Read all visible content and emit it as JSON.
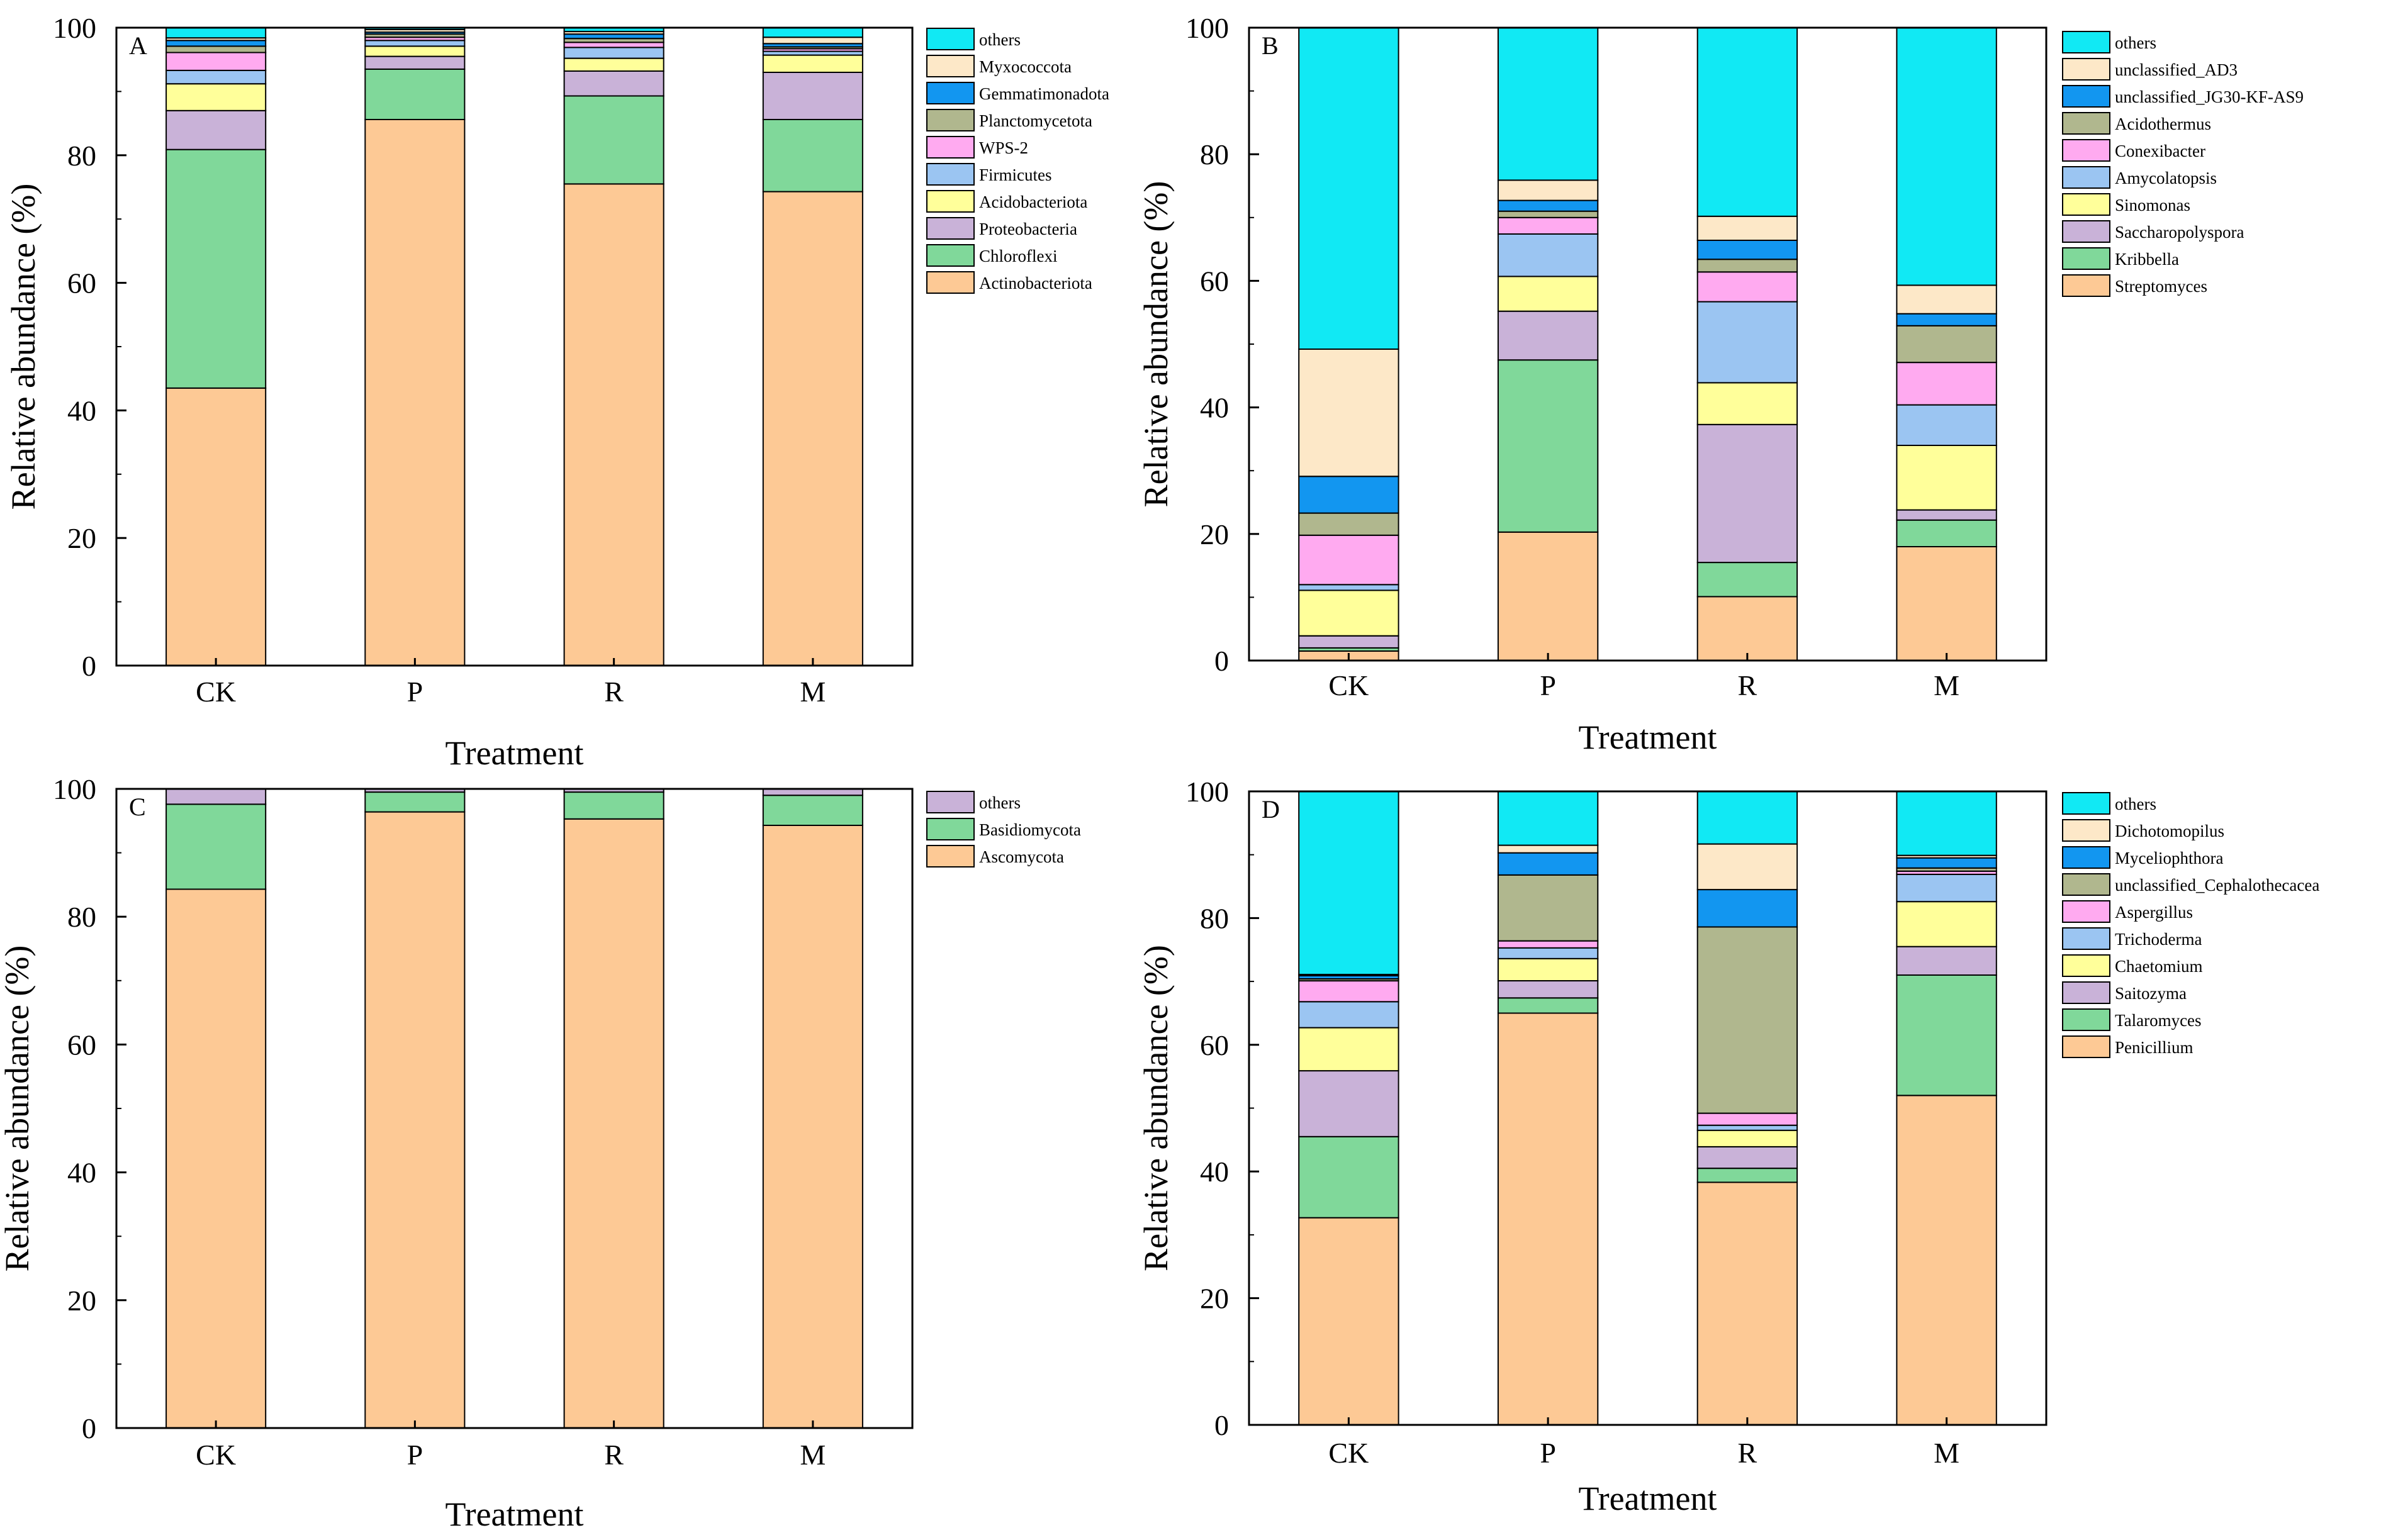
{
  "chart_data": [
    {
      "panel": "A",
      "type": "stacked-bar",
      "xlabel": "Treatment",
      "ylabel": "Relative abundance (%)",
      "ylim": [
        0,
        100
      ],
      "yticks": [
        0,
        20,
        40,
        60,
        80,
        100
      ],
      "categories": [
        "CK",
        "P",
        "R",
        "M"
      ],
      "legend_position": "right",
      "series": [
        {
          "name": "Actinobacteriota",
          "color": "#FDC995",
          "values": [
            43.5,
            85.6,
            75.5,
            74.3
          ]
        },
        {
          "name": "Chloroflexi",
          "color": "#80D89A",
          "values": [
            37.4,
            7.9,
            13.8,
            11.3
          ]
        },
        {
          "name": "Proteobacteria",
          "color": "#C9B2D8",
          "values": [
            6.1,
            2.0,
            3.9,
            7.4
          ]
        },
        {
          "name": "Acidobacteriota",
          "color": "#FFFF9A",
          "values": [
            4.2,
            1.6,
            2.0,
            2.7
          ]
        },
        {
          "name": "Firmicutes",
          "color": "#9BC5F2",
          "values": [
            2.1,
            0.9,
            1.7,
            0.6
          ]
        },
        {
          "name": "WPS-2",
          "color": "#FFAAF0",
          "values": [
            2.8,
            0.5,
            0.8,
            0.4
          ]
        },
        {
          "name": "Planctomycetota",
          "color": "#B0B78E",
          "values": [
            1.0,
            0.5,
            0.6,
            0.3
          ]
        },
        {
          "name": "Gemmatimonadota",
          "color": "#1296F0",
          "values": [
            0.9,
            0.3,
            0.7,
            0.5
          ]
        },
        {
          "name": "Myxococcota",
          "color": "#FDE8C8",
          "values": [
            0.4,
            0.4,
            0.4,
            1.0
          ]
        },
        {
          "name": "others",
          "color": "#11E9F4",
          "values": [
            1.6,
            0.3,
            0.6,
            1.5
          ]
        }
      ]
    },
    {
      "panel": "B",
      "type": "stacked-bar",
      "xlabel": "Treatment",
      "ylabel": "Relative abundance (%)",
      "ylim": [
        0,
        100
      ],
      "yticks": [
        0,
        20,
        40,
        60,
        80,
        100
      ],
      "categories": [
        "CK",
        "P",
        "R",
        "M"
      ],
      "legend_position": "right",
      "series": [
        {
          "name": "Streptomyces",
          "color": "#FDC995",
          "values": [
            1.5,
            20.3,
            10.1,
            18.0
          ]
        },
        {
          "name": "Kribbella",
          "color": "#80D89A",
          "values": [
            0.5,
            27.2,
            5.4,
            4.2
          ]
        },
        {
          "name": "Saccharopolyspora",
          "color": "#C9B2D8",
          "values": [
            1.9,
            7.7,
            21.8,
            1.6
          ]
        },
        {
          "name": "Sinomonas",
          "color": "#FFFF9A",
          "values": [
            7.2,
            5.5,
            6.6,
            10.2
          ]
        },
        {
          "name": "Amycolatopsis",
          "color": "#9BC5F2",
          "values": [
            0.9,
            6.7,
            12.8,
            6.4
          ]
        },
        {
          "name": "Conexibacter",
          "color": "#FFAAF0",
          "values": [
            7.8,
            2.6,
            4.7,
            6.7
          ]
        },
        {
          "name": "Acidothermus",
          "color": "#B0B78E",
          "values": [
            3.5,
            1.0,
            2.0,
            5.8
          ]
        },
        {
          "name": "unclassified_JG30-KF-AS9",
          "color": "#1296F0",
          "values": [
            5.8,
            1.7,
            3.0,
            1.9
          ]
        },
        {
          "name": "unclassified_AD3",
          "color": "#FDE8C8",
          "values": [
            20.1,
            3.2,
            3.8,
            4.5
          ]
        },
        {
          "name": "others",
          "color": "#11E9F4",
          "values": [
            50.8,
            24.1,
            29.8,
            40.7
          ]
        }
      ]
    },
    {
      "panel": "C",
      "type": "stacked-bar",
      "xlabel": "Treatment",
      "ylabel": "Relative abundance (%)",
      "ylim": [
        0,
        100
      ],
      "yticks": [
        0,
        20,
        40,
        60,
        80,
        100
      ],
      "categories": [
        "CK",
        "P",
        "R",
        "M"
      ],
      "legend_position": "right",
      "series": [
        {
          "name": "Ascomycota",
          "color": "#FDC995",
          "values": [
            84.3,
            96.4,
            95.3,
            94.3
          ]
        },
        {
          "name": "Basidiomycota",
          "color": "#80D89A",
          "values": [
            13.3,
            3.1,
            4.2,
            4.7
          ]
        },
        {
          "name": "others",
          "color": "#C9B2D8",
          "values": [
            2.4,
            0.5,
            0.5,
            1.0
          ]
        }
      ]
    },
    {
      "panel": "D",
      "type": "stacked-bar",
      "xlabel": "Treatment",
      "ylabel": "Relative abundance (%)",
      "ylim": [
        0,
        100
      ],
      "yticks": [
        0,
        20,
        40,
        60,
        80,
        100
      ],
      "categories": [
        "CK",
        "P",
        "R",
        "M"
      ],
      "legend_position": "right",
      "series": [
        {
          "name": "Penicillium",
          "color": "#FDC995",
          "values": [
            32.7,
            65.0,
            38.3,
            52.0
          ]
        },
        {
          "name": "Talaromyces",
          "color": "#80D89A",
          "values": [
            12.8,
            2.4,
            2.2,
            19.0
          ]
        },
        {
          "name": "Saitozyma",
          "color": "#C9B2D8",
          "values": [
            10.4,
            2.7,
            3.4,
            4.5
          ]
        },
        {
          "name": "Chaetomium",
          "color": "#FFFF9A",
          "values": [
            6.8,
            3.5,
            2.6,
            7.1
          ]
        },
        {
          "name": "Trichoderma",
          "color": "#9BC5F2",
          "values": [
            4.1,
            1.7,
            0.8,
            4.3
          ]
        },
        {
          "name": "Aspergillus",
          "color": "#FFAAF0",
          "values": [
            3.3,
            1.1,
            1.9,
            0.5
          ]
        },
        {
          "name": "unclassified_Cephalothecacea",
          "color": "#B0B78E",
          "values": [
            0.3,
            10.4,
            29.4,
            0.5
          ]
        },
        {
          "name": "Myceliophthora",
          "color": "#1296F0",
          "values": [
            0.5,
            3.5,
            5.9,
            1.6
          ]
        },
        {
          "name": "Dichotomopilus",
          "color": "#FDE8C8",
          "values": [
            0.2,
            1.2,
            7.2,
            0.4
          ]
        },
        {
          "name": "others",
          "color": "#11E9F4",
          "values": [
            28.9,
            8.5,
            8.3,
            10.1
          ]
        }
      ]
    }
  ]
}
